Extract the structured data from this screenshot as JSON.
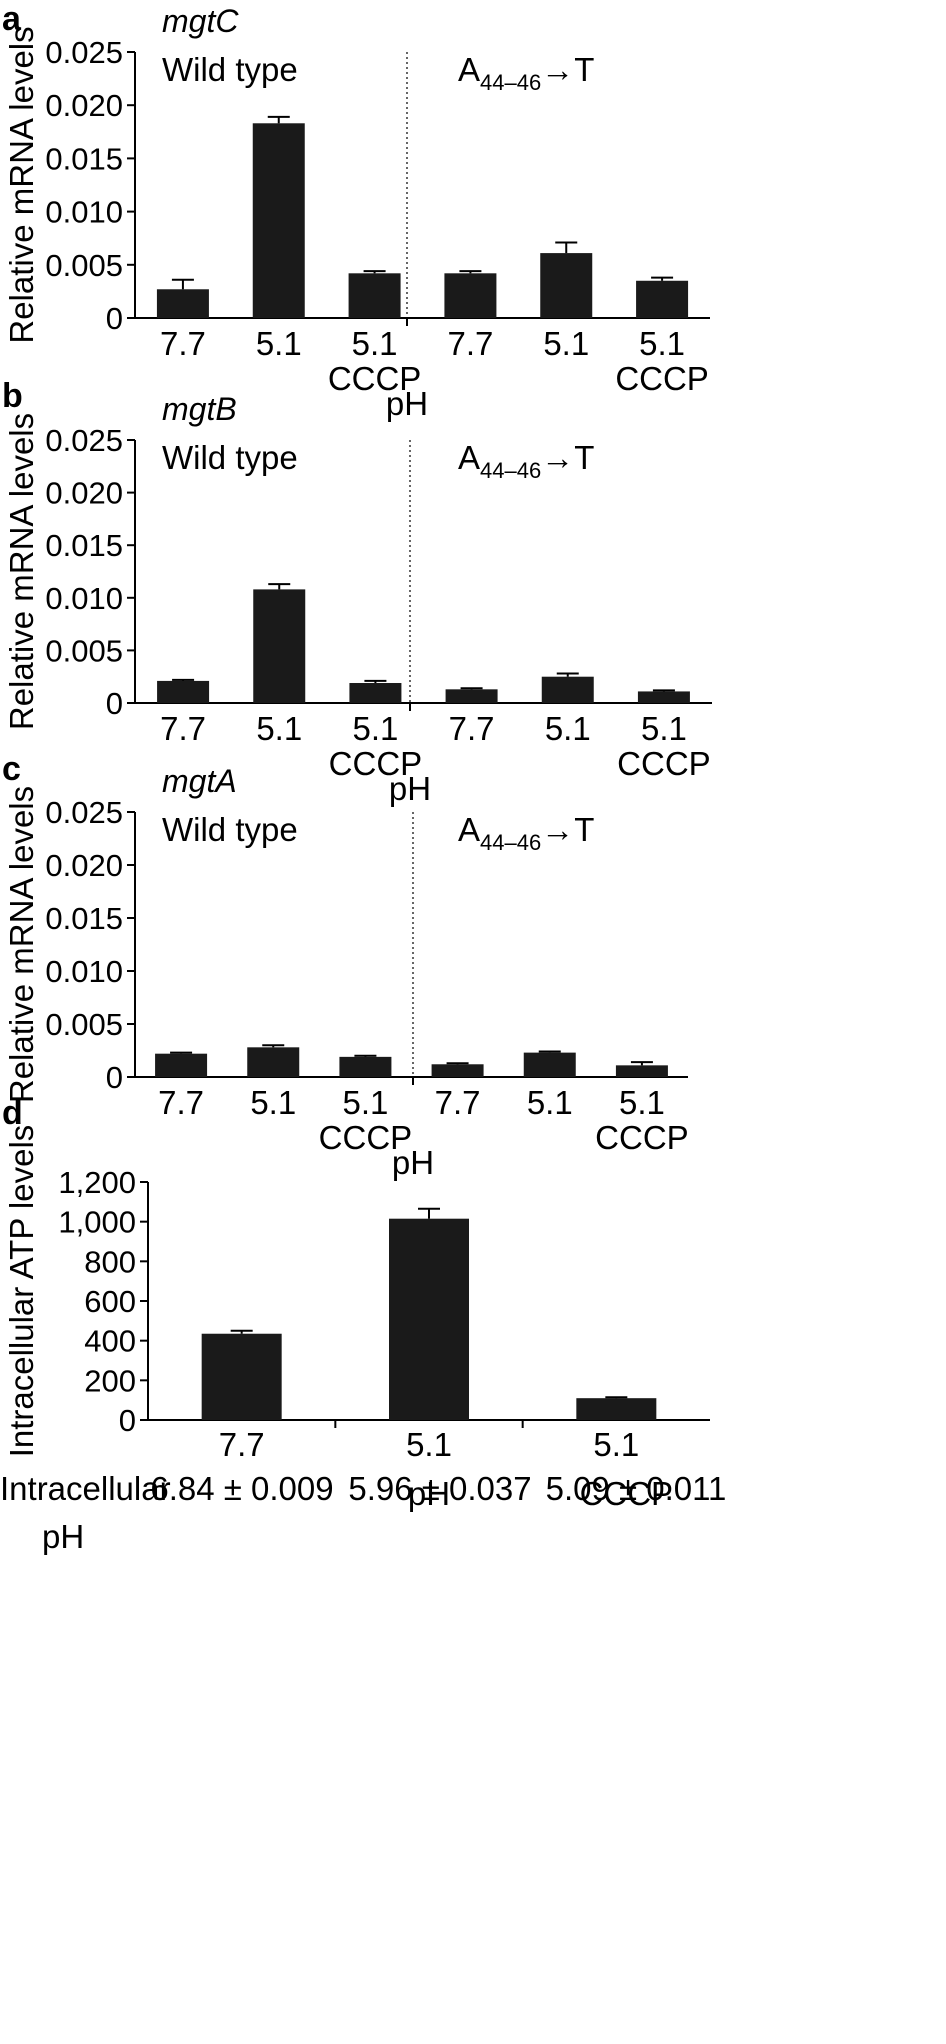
{
  "chart_data": [
    {
      "panel": "a",
      "type": "bar",
      "gene": "mgtC",
      "conditions": [
        "Wild type",
        "A",
        "44–46",
        "→T"
      ],
      "categories": [
        "7.7",
        "5.1",
        "5.1",
        "7.7",
        "5.1",
        "5.1"
      ],
      "sublabels": [
        "",
        "",
        "CCCP",
        "",
        "",
        "CCCP"
      ],
      "values": [
        0.0027,
        0.0183,
        0.0042,
        0.0042,
        0.0061,
        0.0035
      ],
      "errors": [
        0.0009,
        0.0006,
        0.0002,
        0.0002,
        0.001,
        0.0003
      ],
      "ylabel": "Relative mRNA levels",
      "xlabel": "pH",
      "yticks": [
        "0",
        "0.005",
        "0.010",
        "0.015",
        "0.020",
        "0.025"
      ],
      "ylim": [
        0,
        0.025
      ],
      "divider_after": 3
    },
    {
      "panel": "b",
      "type": "bar",
      "gene": "mgtB",
      "conditions": [
        "Wild type",
        "A",
        "44–46",
        "→T"
      ],
      "categories": [
        "7.7",
        "5.1",
        "5.1",
        "7.7",
        "5.1",
        "5.1"
      ],
      "sublabels": [
        "",
        "",
        "CCCP",
        "",
        "",
        "CCCP"
      ],
      "values": [
        0.0021,
        0.0108,
        0.0019,
        0.0013,
        0.0025,
        0.0011
      ],
      "errors": [
        0.0001,
        0.0005,
        0.0002,
        0.0001,
        0.0003,
        0.0001
      ],
      "ylabel": "Relative mRNA levels",
      "xlabel": "pH",
      "yticks": [
        "0",
        "0.005",
        "0.010",
        "0.015",
        "0.020",
        "0.025"
      ],
      "ylim": [
        0,
        0.025
      ],
      "divider_after": 3
    },
    {
      "panel": "c",
      "type": "bar",
      "gene": "mgtA",
      "conditions": [
        "Wild type",
        "A",
        "44–46",
        "→T"
      ],
      "categories": [
        "7.7",
        "5.1",
        "5.1",
        "7.7",
        "5.1",
        "5.1"
      ],
      "sublabels": [
        "",
        "",
        "CCCP",
        "",
        "",
        "CCCP"
      ],
      "values": [
        0.0022,
        0.0028,
        0.0019,
        0.0012,
        0.0023,
        0.0011
      ],
      "errors": [
        0.0001,
        0.0002,
        0.0001,
        0.0001,
        0.0001,
        0.0003
      ],
      "ylabel": "Relative mRNA levels",
      "xlabel": "pH",
      "yticks": [
        "0",
        "0.005",
        "0.010",
        "0.015",
        "0.020",
        "0.025"
      ],
      "ylim": [
        0,
        0.025
      ],
      "divider_after": 3
    },
    {
      "panel": "d",
      "type": "bar",
      "categories": [
        "7.7",
        "5.1",
        "5.1"
      ],
      "sublabels": [
        "",
        "",
        "CCCP"
      ],
      "values": [
        435,
        1015,
        110
      ],
      "errors": [
        15,
        50,
        5
      ],
      "ylabel": "Intracellular ATP levels",
      "xlabel": "pH",
      "yticks": [
        "0",
        "200",
        "400",
        "600",
        "800",
        "1,000",
        "1,200"
      ],
      "ylim": [
        0,
        1200
      ],
      "footer_label_line1": "Intracellular",
      "footer_label_line2": "pH",
      "footer_values": [
        "6.84 ± 0.009",
        "5.96 ±  0.037",
        "5.09 ±  0.011"
      ]
    }
  ],
  "colors": {
    "bar": "#1a1a1a",
    "axis": "#000000"
  }
}
